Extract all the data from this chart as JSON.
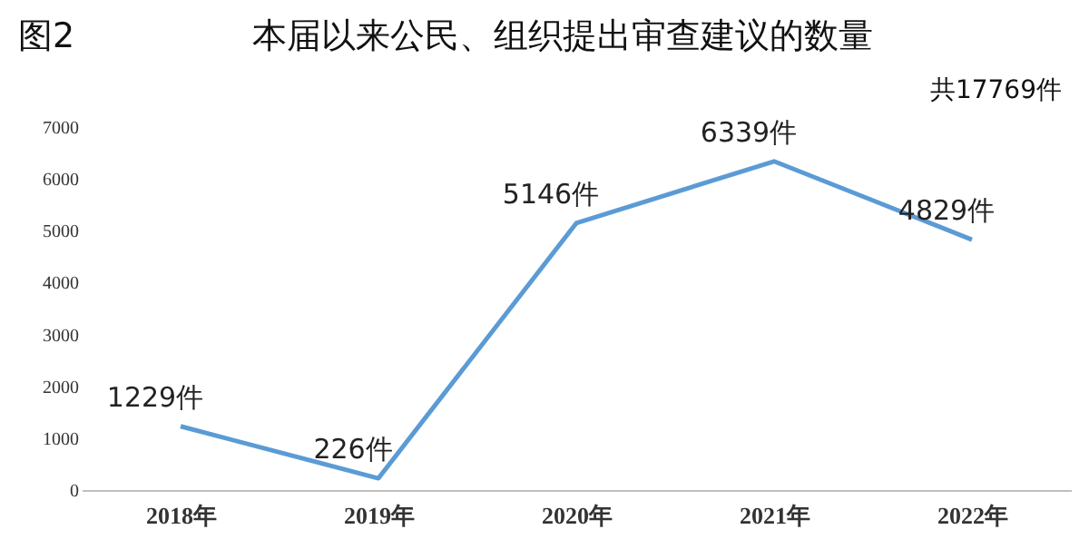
{
  "chart_data": {
    "type": "line",
    "title": "本届以来公民、组织提出审查建议的数量",
    "annotations": [
      "图2",
      "共17769件"
    ],
    "categories": [
      "2018年",
      "2019年",
      "2020年",
      "2021年",
      "2022年"
    ],
    "series": [
      {
        "color": "#5b9bd5",
        "values": [
          1229,
          226,
          5146,
          6339,
          4829
        ],
        "value_labels": [
          "1229件",
          "226件",
          "5146件",
          "6339件",
          "4829件"
        ]
      }
    ],
    "ylim": [
      0,
      7000
    ],
    "yticks": [
      0,
      1000,
      2000,
      3000,
      4000,
      5000,
      6000,
      7000
    ],
    "grid": false,
    "legend": false,
    "marker": "none",
    "line_style": "solid"
  }
}
